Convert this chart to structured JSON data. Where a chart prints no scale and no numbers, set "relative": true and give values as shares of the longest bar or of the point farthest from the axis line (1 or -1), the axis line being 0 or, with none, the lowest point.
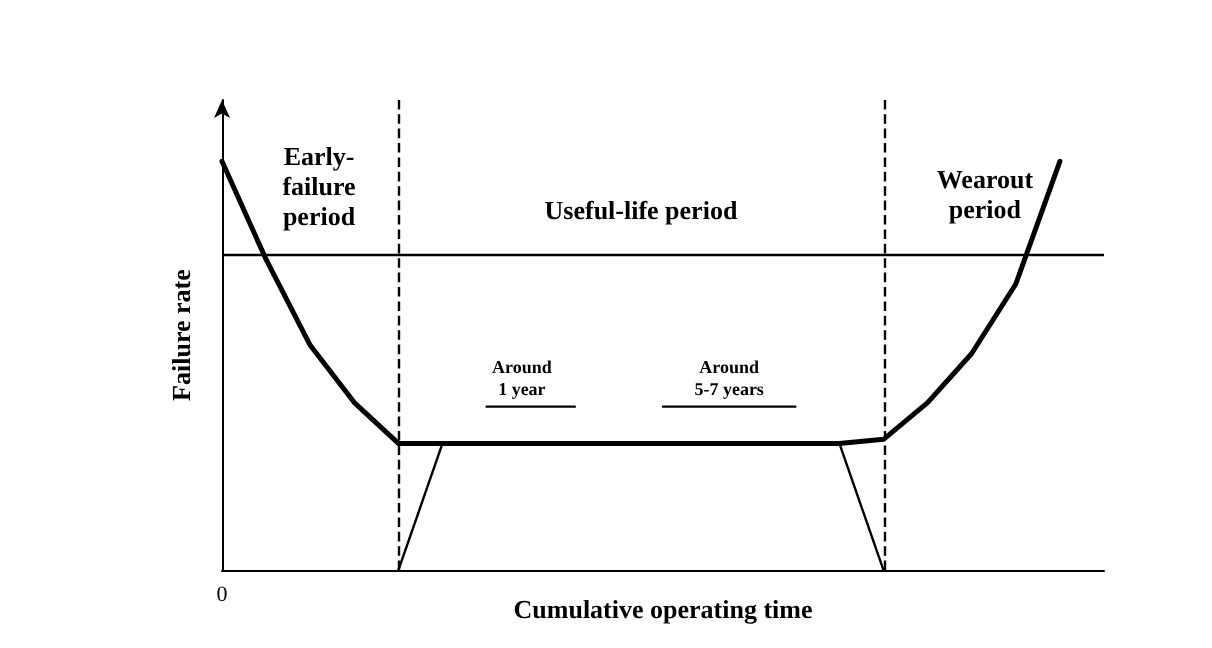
{
  "chart_data": {
    "type": "line",
    "relative": true,
    "xlabel": "Cumulative operating time",
    "ylabel": "Failure rate",
    "marker": "none",
    "line_style": "solid",
    "categories": [
      null,
      null,
      null,
      null,
      null,
      null,
      null,
      null,
      null,
      null,
      null,
      null,
      null,
      null,
      null,
      null,
      null,
      null,
      null,
      null,
      null
    ],
    "series": [
      {
        "color": "#000000",
        "values": [
          1.0,
          0.76,
          0.55,
          0.41,
          0.31,
          0.31,
          0.31,
          0.31,
          0.31,
          0.31,
          0.31,
          0.31,
          0.31,
          0.31,
          0.31,
          0.32,
          0.41,
          0.53,
          0.7,
          1.0,
          null
        ]
      },
      {
        "color": "#000000",
        "values": [
          null,
          null,
          null,
          null,
          0,
          0.31,
          null,
          null,
          null,
          null,
          null,
          null,
          null,
          null,
          null,
          null,
          null,
          null,
          null,
          null,
          null
        ]
      },
      {
        "color": "#000000",
        "values": [
          null,
          null,
          null,
          null,
          null,
          null,
          null,
          null,
          null,
          null,
          null,
          null,
          null,
          null,
          0.31,
          0,
          null,
          null,
          null,
          null,
          null
        ]
      },
      {
        "color": "#000000",
        "values": [
          null,
          null,
          null,
          null,
          null,
          null,
          0.4,
          0.4,
          0.4,
          null,
          null,
          null,
          null,
          null,
          null,
          null,
          null,
          null,
          null,
          null,
          null
        ]
      },
      {
        "color": "#000000",
        "values": [
          null,
          null,
          null,
          null,
          null,
          null,
          null,
          null,
          null,
          null,
          0.4,
          0.4,
          0.4,
          0.4,
          null,
          null,
          null,
          null,
          null,
          null,
          null
        ]
      }
    ],
    "ref_lines": [
      {
        "axis": "y",
        "value": 0.77,
        "line_style": "solid"
      }
    ],
    "annotations": [
      "0",
      "Early-\nfailure\nperiod",
      "Useful-life period",
      "Wearout\nperiod",
      "Around\n1 year",
      "Around\n5-7 years"
    ]
  }
}
